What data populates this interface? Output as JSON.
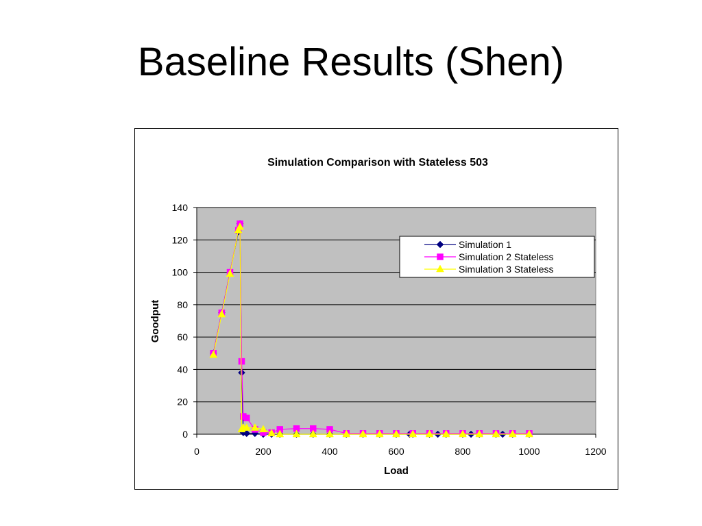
{
  "slide": {
    "title": "Baseline Results (Shen)"
  },
  "chart_data": {
    "type": "line",
    "title": "Simulation Comparison with Stateless 503",
    "xlabel": "Load",
    "ylabel": "Goodput",
    "xlim": [
      0,
      1200
    ],
    "ylim": [
      0,
      140
    ],
    "xticks": [
      0,
      200,
      400,
      600,
      800,
      1000,
      1200
    ],
    "yticks": [
      0,
      20,
      40,
      60,
      80,
      100,
      120,
      140
    ],
    "grid": "horizontal major",
    "plot_background": "#c0c0c0",
    "legend": "right",
    "series": [
      {
        "name": "Simulation 1",
        "color": "#000080",
        "marker": "diamond",
        "points": [
          [
            50,
            50
          ],
          [
            75,
            75
          ],
          [
            100,
            100
          ],
          [
            125,
            125
          ],
          [
            130,
            130
          ],
          [
            135,
            38
          ],
          [
            140,
            1
          ],
          [
            150,
            0.5
          ],
          [
            175,
            0.5
          ],
          [
            200,
            0
          ],
          [
            225,
            0
          ],
          [
            250,
            0
          ],
          [
            300,
            0
          ],
          [
            350,
            0
          ],
          [
            400,
            0
          ],
          [
            450,
            0
          ],
          [
            500,
            0
          ],
          [
            550,
            0
          ],
          [
            600,
            0
          ],
          [
            640,
            0
          ],
          [
            650,
            0
          ],
          [
            700,
            0
          ],
          [
            725,
            0
          ],
          [
            750,
            0
          ],
          [
            800,
            0
          ],
          [
            825,
            0
          ],
          [
            850,
            0
          ],
          [
            900,
            0
          ],
          [
            920,
            0
          ],
          [
            950,
            0
          ],
          [
            1000,
            0
          ]
        ]
      },
      {
        "name": "Simulation 2 Stateless",
        "color": "#ff00ff",
        "marker": "square",
        "points": [
          [
            50,
            50
          ],
          [
            75,
            75
          ],
          [
            100,
            100
          ],
          [
            125,
            126
          ],
          [
            130,
            130
          ],
          [
            135,
            45
          ],
          [
            140,
            11
          ],
          [
            150,
            10
          ],
          [
            175,
            3
          ],
          [
            200,
            1
          ],
          [
            225,
            1
          ],
          [
            250,
            3
          ],
          [
            300,
            3.5
          ],
          [
            350,
            3.5
          ],
          [
            400,
            3
          ],
          [
            450,
            0.5
          ],
          [
            500,
            0.5
          ],
          [
            550,
            0.5
          ],
          [
            600,
            0.5
          ],
          [
            650,
            0.5
          ],
          [
            700,
            0.5
          ],
          [
            750,
            0.5
          ],
          [
            800,
            0.5
          ],
          [
            850,
            0.5
          ],
          [
            900,
            0.5
          ],
          [
            950,
            0.5
          ],
          [
            1000,
            0.5
          ]
        ]
      },
      {
        "name": "Simulation 3 Stateless",
        "color": "#ffff00",
        "marker": "triangle",
        "points": [
          [
            50,
            49
          ],
          [
            75,
            74
          ],
          [
            100,
            99
          ],
          [
            125,
            126
          ],
          [
            130,
            128
          ],
          [
            135,
            3
          ],
          [
            140,
            4
          ],
          [
            150,
            4
          ],
          [
            175,
            4
          ],
          [
            200,
            3
          ],
          [
            225,
            0.5
          ],
          [
            250,
            0
          ],
          [
            300,
            0
          ],
          [
            350,
            0
          ],
          [
            400,
            0
          ],
          [
            450,
            0
          ],
          [
            500,
            0
          ],
          [
            550,
            0
          ],
          [
            600,
            0
          ],
          [
            650,
            0
          ],
          [
            700,
            0
          ],
          [
            750,
            0
          ],
          [
            800,
            0
          ],
          [
            850,
            0
          ],
          [
            900,
            0
          ],
          [
            950,
            0
          ],
          [
            1000,
            0
          ]
        ]
      }
    ]
  }
}
